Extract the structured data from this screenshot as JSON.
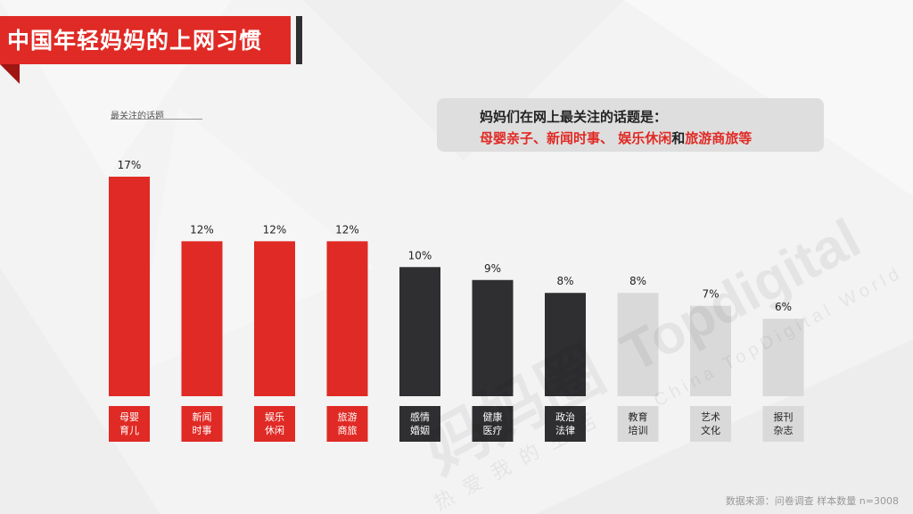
{
  "title": "中国年轻妈妈的上网习惯",
  "chart_label": "最关注的话题",
  "callout": {
    "line1": "妈妈们在网上最关注的话题是：",
    "line2_parts": [
      {
        "text": "母婴亲子、新闻时事、 娱乐休闲",
        "highlight": true
      },
      {
        "text": "和",
        "highlight": false
      },
      {
        "text": "旅游商旅等",
        "highlight": true
      }
    ]
  },
  "chart_data": {
    "type": "bar",
    "categories": [
      "母婴\n育儿",
      "新闻\n时事",
      "娱乐\n休闲",
      "旅游\n商旅",
      "感情\n婚姻",
      "健康\n医疗",
      "政治\n法律",
      "教育\n培训",
      "艺术\n文化",
      "报刊\n杂志"
    ],
    "values": [
      17,
      12,
      12,
      12,
      10,
      9,
      8,
      8,
      7,
      6
    ],
    "value_labels": [
      "17%",
      "12%",
      "12%",
      "12%",
      "10%",
      "9%",
      "8%",
      "8%",
      "7%",
      "6%"
    ],
    "colors": [
      "#e02a25",
      "#e02a25",
      "#e02a25",
      "#e02a25",
      "#2f2f31",
      "#2f2f31",
      "#2f2f31",
      "#d9d9d9",
      "#d9d9d9",
      "#d9d9d9"
    ],
    "label_text_colors": [
      "#ffffff",
      "#ffffff",
      "#ffffff",
      "#ffffff",
      "#ffffff",
      "#ffffff",
      "#ffffff",
      "#222222",
      "#222222",
      "#222222"
    ],
    "ylim": [
      0,
      17
    ],
    "grid": false
  },
  "watermark": {
    "brand": "Topdigital",
    "brand_sub": "China TopDigital World",
    "cn_brand": "妈妈圈",
    "cn_slogan": "热爱我的生活"
  },
  "source": "数据来源：问卷调查 样本数量 n=3008",
  "colors": {
    "accent": "#e02a25",
    "dark": "#2f2f31",
    "light": "#d9d9d9"
  }
}
